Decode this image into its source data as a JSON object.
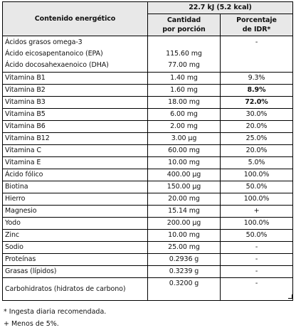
{
  "header": {
    "energy_label": "Contenido energético",
    "energy_value": "22.7 kJ (5.2 kcal)",
    "col_quantity": "Cantidad\npor porción",
    "col_quantity_l1": "Cantidad",
    "col_quantity_l2": "por porción",
    "col_percent_l1": "Porcentaje",
    "col_percent_l2": "de IDR*"
  },
  "omega": {
    "name_l1": "Ácidos grasos omega-3",
    "name_l2": "Ácido eicosapentanoico (EPA)",
    "name_l3": "Ácido docosahexaenoico (DHA)",
    "qty_epa": "115.60 mg",
    "qty_dha": "77.00 mg",
    "pct": "-"
  },
  "rows": [
    {
      "name": "Vitamina B1",
      "qty": "1.40 mg",
      "pct": "9.3%"
    },
    {
      "name": "Vitamina B2",
      "qty": "1.60 mg",
      "pct": "8.9%"
    },
    {
      "name": "Vitamina B3",
      "qty": "18.00 mg",
      "pct": "72.0%"
    },
    {
      "name": "Vitamina B5",
      "qty": "6.00 mg",
      "pct": "30.0%"
    },
    {
      "name": "Vitamina B6",
      "qty": "2.00 mg",
      "pct": "20.0%"
    },
    {
      "name": "Vitamina B12",
      "qty": "3.00 µg",
      "pct": "25.0%"
    },
    {
      "name": "Vitamina C",
      "qty": "60.00 mg",
      "pct": "20.0%"
    },
    {
      "name": "Vitamina E",
      "qty": "10.00 mg",
      "pct": "5.0%"
    },
    {
      "name": "Ácido fólico",
      "qty": "400.00 µg",
      "pct": "100.0%"
    },
    {
      "name": "Biotina",
      "qty": "150.00 µg",
      "pct": "50.0%"
    },
    {
      "name": "Hierro",
      "qty": "20.00 mg",
      "pct": "100.0%"
    },
    {
      "name": "Magnesio",
      "qty": "15.14 mg",
      "pct": "+"
    },
    {
      "name": "Yodo",
      "qty": "200.00 µg",
      "pct": "100.0%"
    },
    {
      "name": "Zinc",
      "qty": "10.00 mg",
      "pct": "50.0%"
    },
    {
      "name": "Sodio",
      "qty": "25.00 mg",
      "pct": "-"
    },
    {
      "name": "Proteínas",
      "qty": "0.2936 g",
      "pct": "-"
    },
    {
      "name": "Grasas (lípidos)",
      "qty": "0.3239 g",
      "pct": "-"
    }
  ],
  "carbs": {
    "name": "Carbohidratos (hidratos de carbono)",
    "qty": "0.3200 g",
    "pct": "-"
  },
  "notes": {
    "idr": "* Ingesta diaria recomendada.",
    "less": "+ Menos de 5%."
  }
}
